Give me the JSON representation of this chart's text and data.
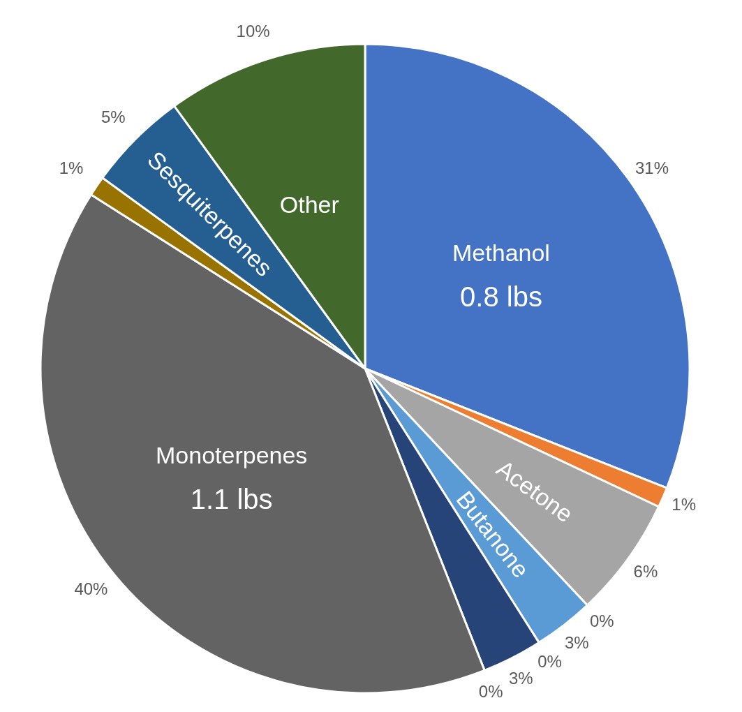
{
  "chart_data": {
    "type": "pie",
    "categories": [
      "Methanol",
      null,
      "Acetone",
      null,
      "Butanone",
      null,
      null,
      null,
      "Monoterpenes",
      null,
      "Sesquiterpenes",
      "Other"
    ],
    "values": [
      31,
      1,
      6,
      0,
      3,
      0,
      3,
      0,
      40,
      1,
      5,
      10
    ],
    "value_labels": [
      "31%",
      "1%",
      "6%",
      "0%",
      "3%",
      "0%",
      "3%",
      "0%",
      "40%",
      "1%",
      "5%",
      "10%"
    ],
    "colors": [
      "#4472c4",
      "#ed7d31",
      "#a5a5a5",
      "#ffc000",
      "#5b9bd5",
      "#70ad47",
      "#264478",
      "#9e480e",
      "#636363",
      "#997300",
      "#255e91",
      "#43682b"
    ],
    "annotations": [
      {
        "text": "0.8 lbs",
        "x": "Methanol"
      },
      {
        "text": "1.1 lbs",
        "x": "Monoterpenes"
      }
    ],
    "legend": false
  }
}
